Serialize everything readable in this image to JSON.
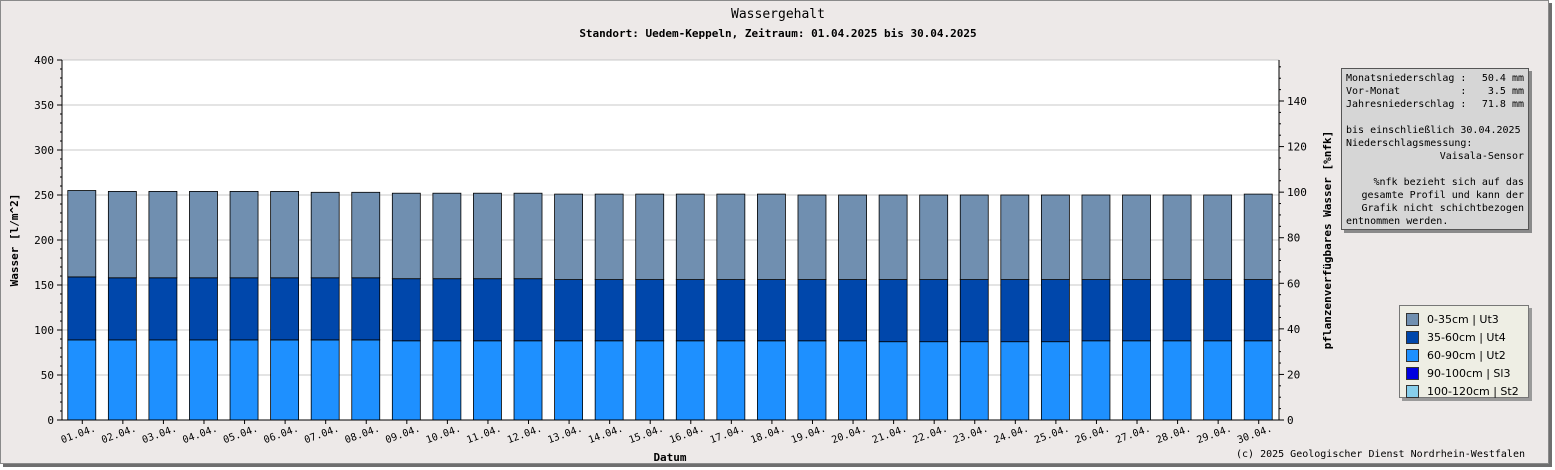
{
  "chart_data": {
    "type": "bar",
    "title": "Wassergehalt",
    "subtitle": "Standort: Uedem-Keppeln, Zeitraum: 01.04.2025 bis 30.04.2025",
    "xlabel": "Datum",
    "ylabel": "Wasser [l/m^2]",
    "ylabel_right": "pflanzenverfügbares Wasser [%nfk]",
    "ylim": [
      0,
      400
    ],
    "yticks": [
      0,
      50,
      100,
      150,
      200,
      250,
      300,
      350,
      400
    ],
    "ylim_right": [
      0,
      158
    ],
    "yticks_right": [
      0,
      20,
      40,
      60,
      80,
      100,
      120,
      140
    ],
    "grid": true,
    "stacked": true,
    "categories": [
      "01.04.",
      "02.04.",
      "03.04.",
      "04.04.",
      "05.04.",
      "06.04.",
      "07.04.",
      "08.04.",
      "09.04.",
      "10.04.",
      "11.04.",
      "12.04.",
      "13.04.",
      "14.04.",
      "15.04.",
      "16.04.",
      "17.04.",
      "18.04.",
      "19.04.",
      "20.04.",
      "21.04.",
      "22.04.",
      "23.04.",
      "24.04.",
      "25.04.",
      "26.04.",
      "27.04.",
      "28.04.",
      "29.04.",
      "30.04."
    ],
    "series": [
      {
        "name": "60-90cm | Ut2",
        "color": "#1e90ff",
        "values": [
          89,
          89,
          89,
          89,
          89,
          89,
          89,
          89,
          88,
          88,
          88,
          88,
          88,
          88,
          88,
          88,
          88,
          88,
          88,
          88,
          87,
          87,
          87,
          87,
          87,
          88,
          88,
          88,
          88,
          88
        ]
      },
      {
        "name": "35-60cm | Ut4",
        "color": "#0047ab",
        "values": [
          70,
          69,
          69,
          69,
          69,
          69,
          69,
          69,
          69,
          69,
          69,
          69,
          68,
          68,
          68,
          68,
          68,
          68,
          68,
          68,
          69,
          69,
          69,
          69,
          69,
          68,
          68,
          68,
          68,
          68
        ]
      },
      {
        "name": "0-35cm | Ut3",
        "color": "#708fb0",
        "values": [
          96,
          96,
          96,
          96,
          96,
          96,
          95,
          95,
          95,
          95,
          95,
          95,
          95,
          95,
          95,
          95,
          95,
          95,
          94,
          94,
          94,
          94,
          94,
          94,
          94,
          94,
          94,
          94,
          94,
          95
        ]
      },
      {
        "name": "90-100cm | Sl3",
        "color": "#0000e0",
        "values": [
          0,
          0,
          0,
          0,
          0,
          0,
          0,
          0,
          0,
          0,
          0,
          0,
          0,
          0,
          0,
          0,
          0,
          0,
          0,
          0,
          0,
          0,
          0,
          0,
          0,
          0,
          0,
          0,
          0,
          0
        ]
      },
      {
        "name": "100-120cm | St2",
        "color": "#87ceeb",
        "values": [
          0,
          0,
          0,
          0,
          0,
          0,
          0,
          0,
          0,
          0,
          0,
          0,
          0,
          0,
          0,
          0,
          0,
          0,
          0,
          0,
          0,
          0,
          0,
          0,
          0,
          0,
          0,
          0,
          0,
          0
        ]
      }
    ],
    "legend": {
      "placement": "bottom-right",
      "entries": [
        {
          "label": "0-35cm | Ut3",
          "color": "#708fb0"
        },
        {
          "label": "35-60cm | Ut4",
          "color": "#0047ab"
        },
        {
          "label": "60-90cm | Ut2",
          "color": "#1e90ff"
        },
        {
          "label": "90-100cm | Sl3",
          "color": "#0000e0"
        },
        {
          "label": "100-120cm | St2",
          "color": "#87ceeb"
        }
      ]
    }
  },
  "info": {
    "monat_label": "Monatsniederschlag :",
    "monat_value": "50.4 mm",
    "vormonat_label": "Vor-Monat          :",
    "vormonat_value": "3.5 mm",
    "jahr_label": "Jahresniederschlag :",
    "jahr_value": "71.8 mm",
    "bis": "bis einschließlich 30.04.2025",
    "messung_label": "Niederschlagsmessung:",
    "sensor": "Vaisala-Sensor",
    "note": [
      "%nfk bezieht sich auf das",
      "gesamte Profil und kann der",
      "Grafik nicht schichtbezogen",
      "entnommen werden."
    ]
  },
  "copyright": "(c) 2025 Geologischer Dienst Nordrhein-Westfalen"
}
